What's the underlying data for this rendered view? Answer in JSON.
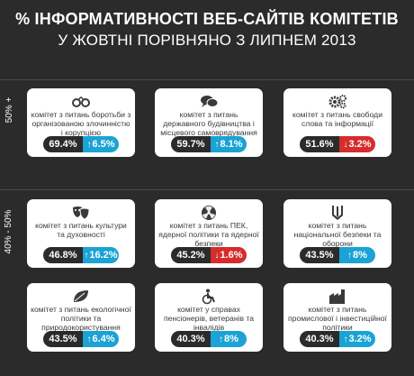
{
  "title_line1": "% ІНФОРМАТИВНОСТІ ВЕБ-САЙТІВ КОМІТЕТІВ",
  "title_line2": "У ЖОВТНІ ПОРІВНЯНО З ЛИПНЕМ 2013",
  "group_labels": [
    "50% +",
    "40% - 50%"
  ],
  "colors": {
    "background": "#2b2b2b",
    "up": "#1aa3d4",
    "down": "#d62c2c",
    "card": "#ffffff"
  },
  "chart_data": {
    "type": "table",
    "title": "% ІНФОРМАТИВНОСТІ ВЕБ-САЙТІВ КОМІТЕТІВ У ЖОВТНІ ПОРІВНЯНО З ЛИПНЕМ 2013",
    "groups": [
      {
        "label": "50% +",
        "items": [
          {
            "name": "комітет з питань боротьби з організованою злочинністю і корупцією",
            "icon": "handcuffs-icon",
            "value": "69.4%",
            "change": "6.5%",
            "direction": "up"
          },
          {
            "name": "комітет з питань державного будівництва і місцевого самоврядування",
            "icon": "speech-bubbles-icon",
            "value": "59.7%",
            "change": "8.1%",
            "direction": "up"
          },
          {
            "name": "комітет з питань свободи слова та інформації",
            "icon": "gears-icon",
            "value": "51.6%",
            "change": "3.2%",
            "direction": "down"
          }
        ]
      },
      {
        "label": "40% - 50%",
        "items": [
          {
            "name": "комітет з питань культури та духовності",
            "icon": "theater-masks-icon",
            "value": "46.8%",
            "change": "16.2%",
            "direction": "up"
          },
          {
            "name": "комітет з питань ПЕК, ядерної політики та ядерної безпеки",
            "icon": "radiation-icon",
            "value": "45.2%",
            "change": "1.6%",
            "direction": "down"
          },
          {
            "name": "комітет з питань національної безпеки та оборони",
            "icon": "trident-icon",
            "value": "43.5%",
            "change": "8%",
            "direction": "up"
          },
          {
            "name": "комітет з питань екологічної політики та природокористування",
            "icon": "leaf-icon",
            "value": "43.5%",
            "change": "6.4%",
            "direction": "up"
          },
          {
            "name": "комітет у справах пенсіонерів, ветеранів та інвалідів",
            "icon": "wheelchair-icon",
            "value": "40.3%",
            "change": "8%",
            "direction": "up"
          },
          {
            "name": "комітет з питань промислової і інвестиційної політики",
            "icon": "factory-icon",
            "value": "40.3%",
            "change": "3.2%",
            "direction": "up"
          }
        ]
      }
    ]
  }
}
